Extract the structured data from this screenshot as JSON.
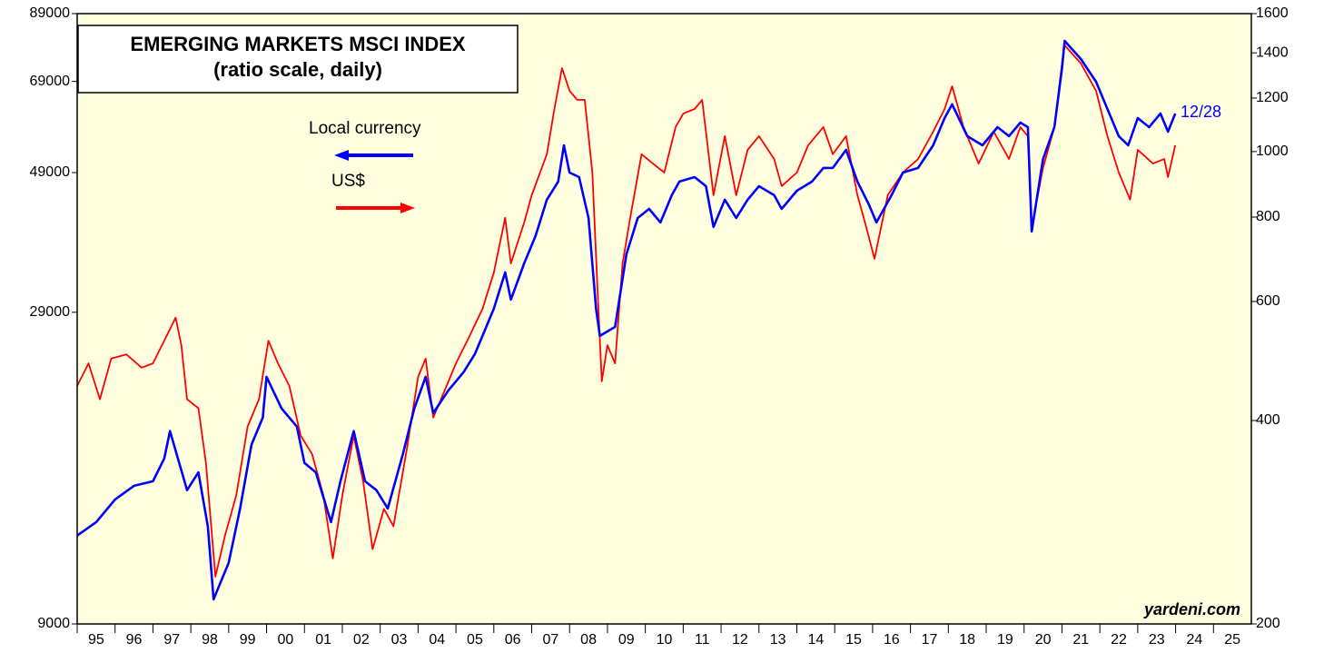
{
  "chart_data": {
    "type": "line",
    "title": "EMERGING MARKETS MSCI INDEX",
    "subtitle": "(ratio scale, daily)",
    "annotations": [
      "12/28",
      "yardeni.com"
    ],
    "log_scale": true,
    "xlim": [
      1995,
      2026
    ],
    "xticks": [
      {
        "value": 1995,
        "label": "95"
      },
      {
        "value": 1996,
        "label": "96"
      },
      {
        "value": 1997,
        "label": "97"
      },
      {
        "value": 1998,
        "label": "98"
      },
      {
        "value": 1999,
        "label": "99"
      },
      {
        "value": 2000,
        "label": "00"
      },
      {
        "value": 2001,
        "label": "01"
      },
      {
        "value": 2002,
        "label": "02"
      },
      {
        "value": 2003,
        "label": "03"
      },
      {
        "value": 2004,
        "label": "04"
      },
      {
        "value": 2005,
        "label": "05"
      },
      {
        "value": 2006,
        "label": "06"
      },
      {
        "value": 2007,
        "label": "07"
      },
      {
        "value": 2008,
        "label": "08"
      },
      {
        "value": 2009,
        "label": "09"
      },
      {
        "value": 2010,
        "label": "10"
      },
      {
        "value": 2011,
        "label": "11"
      },
      {
        "value": 2012,
        "label": "12"
      },
      {
        "value": 2013,
        "label": "13"
      },
      {
        "value": 2014,
        "label": "14"
      },
      {
        "value": 2015,
        "label": "15"
      },
      {
        "value": 2016,
        "label": "16"
      },
      {
        "value": 2017,
        "label": "17"
      },
      {
        "value": 2018,
        "label": "18"
      },
      {
        "value": 2019,
        "label": "19"
      },
      {
        "value": 2020,
        "label": "20"
      },
      {
        "value": 2021,
        "label": "21"
      },
      {
        "value": 2022,
        "label": "22"
      },
      {
        "value": 2023,
        "label": "23"
      },
      {
        "value": 2024,
        "label": "24"
      },
      {
        "value": 2025,
        "label": "25"
      }
    ],
    "ylim": [
      9000,
      89000
    ],
    "yticks": [
      9000,
      29000,
      49000,
      69000,
      89000
    ],
    "y2lim": [
      200,
      1600
    ],
    "y2ticks": [
      200,
      400,
      600,
      800,
      1000,
      1200,
      1400,
      1600
    ],
    "series": [
      {
        "name": "Local currency",
        "color": "#0000ff",
        "axis": "y",
        "x": [
          1995.0,
          1995.5,
          1996.0,
          1996.5,
          1997.0,
          1997.3,
          1997.45,
          1997.9,
          1998.2,
          1998.45,
          1998.6,
          1999.0,
          1999.3,
          1999.6,
          1999.9,
          2000.0,
          2000.4,
          2000.8,
          2001.0,
          2001.3,
          2001.7,
          2001.95,
          2002.3,
          2002.6,
          2002.9,
          2003.2,
          2003.6,
          2003.9,
          2004.2,
          2004.4,
          2004.8,
          2005.2,
          2005.5,
          2005.8,
          2006.0,
          2006.3,
          2006.45,
          2006.8,
          2007.1,
          2007.4,
          2007.7,
          2007.85,
          2008.0,
          2008.25,
          2008.5,
          2008.7,
          2008.8,
          2009.2,
          2009.5,
          2009.8,
          2010.1,
          2010.4,
          2010.7,
          2010.9,
          2011.3,
          2011.6,
          2011.8,
          2012.1,
          2012.4,
          2012.7,
          2013.0,
          2013.4,
          2013.6,
          2014.0,
          2014.4,
          2014.7,
          2014.95,
          2015.3,
          2015.6,
          2015.9,
          2016.1,
          2016.5,
          2016.8,
          2017.2,
          2017.6,
          2017.9,
          2018.1,
          2018.5,
          2018.9,
          2019.3,
          2019.6,
          2019.9,
          2020.1,
          2020.2,
          2020.5,
          2020.8,
          2021.0,
          2021.07,
          2021.5,
          2021.9,
          2022.2,
          2022.5,
          2022.75,
          2023.0,
          2023.3,
          2023.6,
          2023.8,
          2023.99
        ],
        "values": [
          12540,
          13190,
          14360,
          15120,
          15380,
          16750,
          18560,
          14870,
          15900,
          12970,
          9870,
          11320,
          13880,
          17630,
          19530,
          22760,
          20200,
          18880,
          16470,
          15900,
          13190,
          15380,
          18560,
          15380,
          14870,
          13880,
          17040,
          20200,
          22760,
          19860,
          21630,
          23150,
          24800,
          27460,
          29390,
          33690,
          30410,
          34850,
          38610,
          44250,
          47370,
          54290,
          49010,
          48180,
          41330,
          29390,
          26540,
          27460,
          36060,
          41330,
          42760,
          40640,
          45010,
          47370,
          48180,
          46560,
          39950,
          44250,
          41330,
          44250,
          46560,
          45010,
          42760,
          45780,
          47370,
          49860,
          49860,
          53370,
          47370,
          43500,
          40640,
          45010,
          49010,
          49860,
          54290,
          60140,
          63300,
          56180,
          54290,
          58120,
          56180,
          59120,
          58120,
          39270,
          51580,
          58120,
          72540,
          80350,
          75040,
          68920,
          62220,
          56180,
          54290,
          60140,
          58120,
          61170,
          57140,
          61170
        ]
      },
      {
        "name": "US$",
        "color": "#ff0000",
        "axis": "y2",
        "x": [
          1995.0,
          1995.3,
          1995.6,
          1995.9,
          1996.3,
          1996.7,
          1997.0,
          1997.3,
          1997.6,
          1997.75,
          1997.9,
          1998.2,
          1998.4,
          1998.65,
          1998.9,
          1999.2,
          1999.5,
          1999.8,
          2000.05,
          2000.3,
          2000.6,
          2000.9,
          2001.2,
          2001.5,
          2001.75,
          2002.0,
          2002.3,
          2002.55,
          2002.8,
          2003.1,
          2003.35,
          2003.7,
          2004.0,
          2004.2,
          2004.4,
          2004.7,
          2005.0,
          2005.3,
          2005.7,
          2006.0,
          2006.3,
          2006.45,
          2006.8,
          2007.0,
          2007.4,
          2007.6,
          2007.8,
          2008.0,
          2008.2,
          2008.4,
          2008.6,
          2008.75,
          2008.85,
          2009.0,
          2009.2,
          2009.4,
          2009.6,
          2009.9,
          2010.2,
          2010.5,
          2010.8,
          2011.0,
          2011.3,
          2011.5,
          2011.8,
          2012.1,
          2012.4,
          2012.7,
          2013.0,
          2013.4,
          2013.6,
          2014.0,
          2014.3,
          2014.7,
          2014.95,
          2015.3,
          2015.6,
          2015.8,
          2016.05,
          2016.4,
          2016.8,
          2017.2,
          2017.6,
          2017.9,
          2018.1,
          2018.4,
          2018.8,
          2019.2,
          2019.6,
          2019.9,
          2020.1,
          2020.2,
          2020.5,
          2020.8,
          2021.0,
          2021.07,
          2021.5,
          2021.9,
          2022.2,
          2022.5,
          2022.8,
          2023.0,
          2023.4,
          2023.7,
          2023.8,
          2023.99
        ],
        "values": [
          450,
          486,
          430,
          494,
          501,
          479,
          486,
          525,
          568,
          517,
          430,
          417,
          346,
          235,
          270,
          310,
          392,
          430,
          525,
          486,
          450,
          380,
          357,
          310,
          250,
          310,
          380,
          325,
          258,
          296,
          279,
          362,
          464,
          494,
          404,
          443,
          486,
          525,
          585,
          662,
          798,
          683,
          785,
          862,
          991,
          1156,
          1329,
          1230,
          1193,
          1193,
          931,
          604,
          457,
          517,
          486,
          683,
          798,
          991,
          960,
          931,
          1087,
          1138,
          1156,
          1193,
          862,
          1054,
          862,
          1006,
          1054,
          975,
          889,
          931,
          1022,
          1087,
          991,
          1054,
          862,
          785,
          694,
          862,
          931,
          975,
          1070,
          1156,
          1249,
          1087,
          960,
          1070,
          975,
          1087,
          1054,
          773,
          946,
          1087,
          1350,
          1436,
          1350,
          1230,
          1054,
          931,
          849,
          1006,
          960,
          975,
          917,
          1022
        ]
      }
    ]
  }
}
